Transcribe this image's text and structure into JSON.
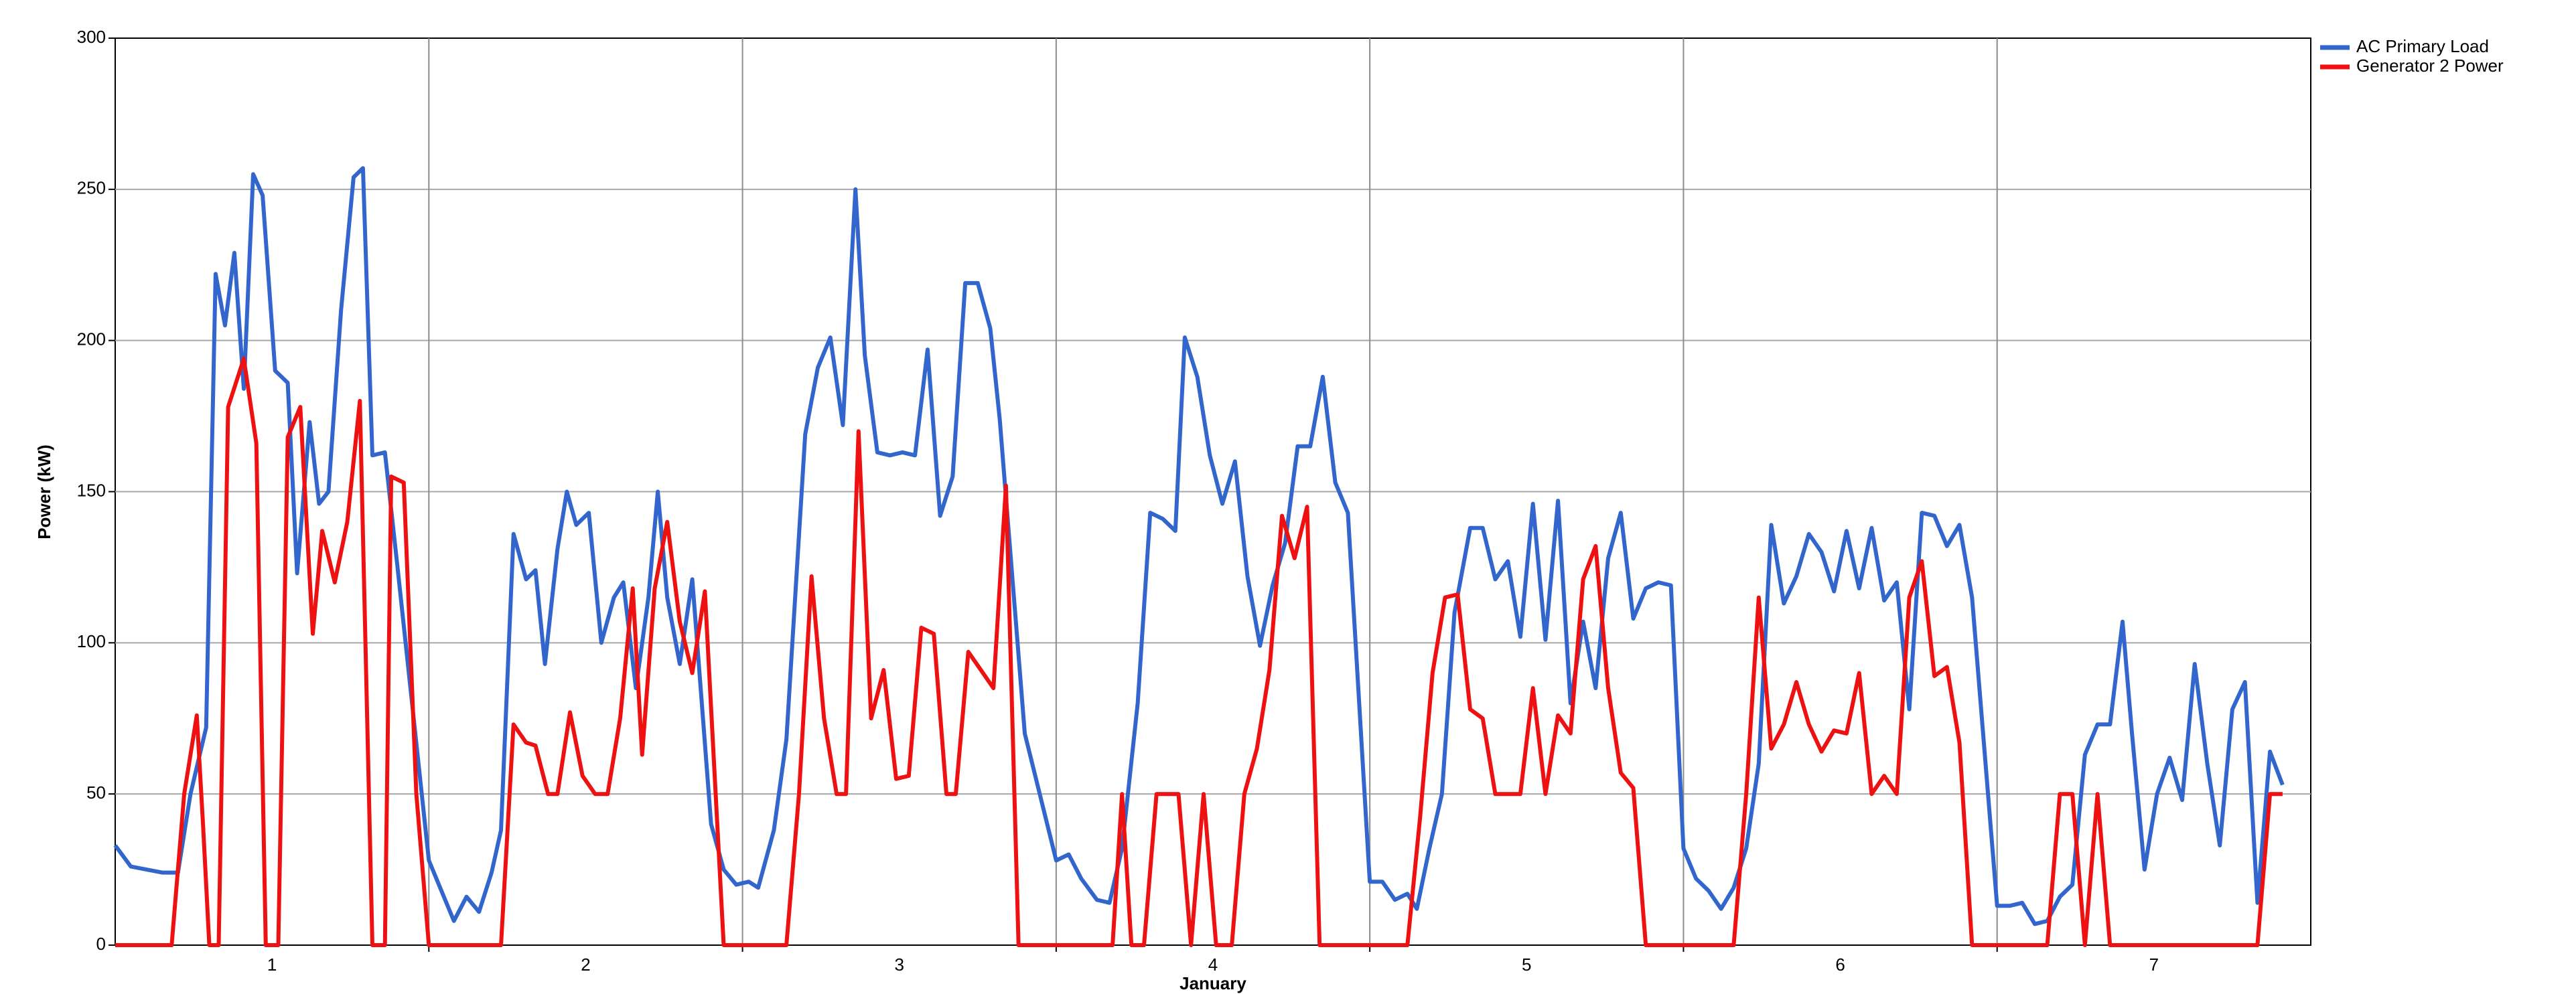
{
  "chart_data": {
    "type": "line",
    "title": "",
    "xlabel": "January",
    "ylabel": "Power (kW)",
    "xlim": [
      0.5,
      7.5
    ],
    "ylim": [
      0,
      300
    ],
    "yticks": [
      0,
      50,
      100,
      150,
      200,
      250,
      300
    ],
    "xticks": [
      {
        "value": 1,
        "label": "1"
      },
      {
        "value": 2,
        "label": "2"
      },
      {
        "value": 3,
        "label": "3"
      },
      {
        "value": 4,
        "label": "4"
      },
      {
        "value": 5,
        "label": "5"
      },
      {
        "value": 6,
        "label": "6"
      },
      {
        "value": 7,
        "label": "7"
      }
    ],
    "vgrid": [
      1.5,
      2.5,
      3.5,
      4.5,
      5.5,
      6.5
    ],
    "grid": true,
    "legend_position": "top-right",
    "series": [
      {
        "name": "AC Primary Load",
        "color": "#3366cc",
        "points": [
          [
            0.5,
            33
          ],
          [
            0.55,
            26
          ],
          [
            0.6,
            25
          ],
          [
            0.65,
            24
          ],
          [
            0.7,
            24
          ],
          [
            0.74,
            50
          ],
          [
            0.79,
            72
          ],
          [
            0.82,
            222
          ],
          [
            0.85,
            205
          ],
          [
            0.88,
            229
          ],
          [
            0.91,
            184
          ],
          [
            0.94,
            255
          ],
          [
            0.97,
            248
          ],
          [
            1.01,
            190
          ],
          [
            1.05,
            186
          ],
          [
            1.08,
            123
          ],
          [
            1.12,
            173
          ],
          [
            1.15,
            146
          ],
          [
            1.18,
            150
          ],
          [
            1.22,
            210
          ],
          [
            1.26,
            254
          ],
          [
            1.29,
            257
          ],
          [
            1.32,
            162
          ],
          [
            1.36,
            163
          ],
          [
            1.4,
            125
          ],
          [
            1.5,
            28
          ],
          [
            1.54,
            18
          ],
          [
            1.58,
            8
          ],
          [
            1.62,
            16
          ],
          [
            1.66,
            11
          ],
          [
            1.7,
            24
          ],
          [
            1.73,
            38
          ],
          [
            1.77,
            136
          ],
          [
            1.81,
            121
          ],
          [
            1.84,
            124
          ],
          [
            1.87,
            93
          ],
          [
            1.91,
            131
          ],
          [
            1.94,
            150
          ],
          [
            1.97,
            139
          ],
          [
            2.01,
            143
          ],
          [
            2.05,
            100
          ],
          [
            2.09,
            115
          ],
          [
            2.12,
            120
          ],
          [
            2.16,
            85
          ],
          [
            2.2,
            115
          ],
          [
            2.23,
            150
          ],
          [
            2.26,
            115
          ],
          [
            2.3,
            93
          ],
          [
            2.34,
            121
          ],
          [
            2.4,
            40
          ],
          [
            2.44,
            25
          ],
          [
            2.48,
            20
          ],
          [
            2.52,
            21
          ],
          [
            2.55,
            19
          ],
          [
            2.6,
            38
          ],
          [
            2.64,
            68
          ],
          [
            2.7,
            169
          ],
          [
            2.74,
            191
          ],
          [
            2.78,
            201
          ],
          [
            2.82,
            172
          ],
          [
            2.86,
            250
          ],
          [
            2.89,
            195
          ],
          [
            2.93,
            163
          ],
          [
            2.97,
            162
          ],
          [
            3.01,
            163
          ],
          [
            3.05,
            162
          ],
          [
            3.09,
            197
          ],
          [
            3.13,
            142
          ],
          [
            3.17,
            155
          ],
          [
            3.21,
            219
          ],
          [
            3.25,
            219
          ],
          [
            3.29,
            204
          ],
          [
            3.32,
            174
          ],
          [
            3.4,
            70
          ],
          [
            3.5,
            28
          ],
          [
            3.54,
            30
          ],
          [
            3.58,
            22
          ],
          [
            3.63,
            15
          ],
          [
            3.67,
            14
          ],
          [
            3.71,
            32
          ],
          [
            3.76,
            80
          ],
          [
            3.8,
            143
          ],
          [
            3.84,
            141
          ],
          [
            3.88,
            137
          ],
          [
            3.91,
            201
          ],
          [
            3.95,
            188
          ],
          [
            3.99,
            162
          ],
          [
            4.03,
            146
          ],
          [
            4.07,
            160
          ],
          [
            4.11,
            122
          ],
          [
            4.15,
            99
          ],
          [
            4.19,
            119
          ],
          [
            4.23,
            133
          ],
          [
            4.27,
            165
          ],
          [
            4.31,
            165
          ],
          [
            4.35,
            188
          ],
          [
            4.39,
            153
          ],
          [
            4.43,
            143
          ],
          [
            4.5,
            21
          ],
          [
            4.54,
            21
          ],
          [
            4.58,
            15
          ],
          [
            4.62,
            17
          ],
          [
            4.65,
            12
          ],
          [
            4.69,
            32
          ],
          [
            4.73,
            50
          ],
          [
            4.77,
            110
          ],
          [
            4.82,
            138
          ],
          [
            4.86,
            138
          ],
          [
            4.9,
            121
          ],
          [
            4.94,
            127
          ],
          [
            4.98,
            102
          ],
          [
            5.02,
            146
          ],
          [
            5.06,
            101
          ],
          [
            5.1,
            147
          ],
          [
            5.14,
            80
          ],
          [
            5.18,
            107
          ],
          [
            5.22,
            85
          ],
          [
            5.26,
            128
          ],
          [
            5.3,
            143
          ],
          [
            5.34,
            108
          ],
          [
            5.38,
            118
          ],
          [
            5.42,
            120
          ],
          [
            5.46,
            119
          ],
          [
            5.5,
            32
          ],
          [
            5.54,
            22
          ],
          [
            5.58,
            18
          ],
          [
            5.62,
            12
          ],
          [
            5.66,
            19
          ],
          [
            5.7,
            32
          ],
          [
            5.74,
            60
          ],
          [
            5.78,
            139
          ],
          [
            5.82,
            113
          ],
          [
            5.86,
            122
          ],
          [
            5.9,
            136
          ],
          [
            5.94,
            130
          ],
          [
            5.98,
            117
          ],
          [
            6.02,
            137
          ],
          [
            6.06,
            118
          ],
          [
            6.1,
            138
          ],
          [
            6.14,
            114
          ],
          [
            6.18,
            120
          ],
          [
            6.22,
            78
          ],
          [
            6.26,
            143
          ],
          [
            6.3,
            142
          ],
          [
            6.34,
            132
          ],
          [
            6.38,
            139
          ],
          [
            6.42,
            115
          ],
          [
            6.5,
            13
          ],
          [
            6.54,
            13
          ],
          [
            6.58,
            14
          ],
          [
            6.62,
            7
          ],
          [
            6.66,
            8
          ],
          [
            6.7,
            16
          ],
          [
            6.74,
            20
          ],
          [
            6.78,
            63
          ],
          [
            6.82,
            73
          ],
          [
            6.86,
            73
          ],
          [
            6.9,
            107
          ],
          [
            6.93,
            70
          ],
          [
            6.97,
            25
          ],
          [
            7.01,
            50
          ],
          [
            7.05,
            62
          ],
          [
            7.09,
            48
          ],
          [
            7.13,
            93
          ],
          [
            7.17,
            60
          ],
          [
            7.21,
            33
          ],
          [
            7.25,
            78
          ],
          [
            7.29,
            87
          ],
          [
            7.33,
            14
          ],
          [
            7.37,
            64
          ],
          [
            7.41,
            53
          ]
        ]
      },
      {
        "name": "Generator 2 Power",
        "color": "#ee1111",
        "points": [
          [
            0.5,
            0
          ],
          [
            0.56,
            0
          ],
          [
            0.62,
            0
          ],
          [
            0.68,
            0
          ],
          [
            0.72,
            50
          ],
          [
            0.76,
            76
          ],
          [
            0.78,
            40
          ],
          [
            0.8,
            0
          ],
          [
            0.83,
            0
          ],
          [
            0.86,
            178
          ],
          [
            0.91,
            194
          ],
          [
            0.95,
            166
          ],
          [
            0.98,
            0
          ],
          [
            1.02,
            0
          ],
          [
            1.05,
            168
          ],
          [
            1.09,
            178
          ],
          [
            1.13,
            103
          ],
          [
            1.16,
            137
          ],
          [
            1.2,
            120
          ],
          [
            1.24,
            140
          ],
          [
            1.28,
            180
          ],
          [
            1.32,
            0
          ],
          [
            1.36,
            0
          ],
          [
            1.38,
            155
          ],
          [
            1.42,
            153
          ],
          [
            1.46,
            50
          ],
          [
            1.5,
            0
          ],
          [
            1.6,
            0
          ],
          [
            1.7,
            0
          ],
          [
            1.73,
            0
          ],
          [
            1.77,
            73
          ],
          [
            1.81,
            67
          ],
          [
            1.84,
            66
          ],
          [
            1.88,
            50
          ],
          [
            1.91,
            50
          ],
          [
            1.95,
            77
          ],
          [
            1.99,
            56
          ],
          [
            2.03,
            50
          ],
          [
            2.07,
            50
          ],
          [
            2.11,
            75
          ],
          [
            2.15,
            118
          ],
          [
            2.18,
            63
          ],
          [
            2.22,
            118
          ],
          [
            2.26,
            140
          ],
          [
            2.3,
            107
          ],
          [
            2.34,
            90
          ],
          [
            2.38,
            117
          ],
          [
            2.44,
            0
          ],
          [
            2.5,
            0
          ],
          [
            2.6,
            0
          ],
          [
            2.64,
            0
          ],
          [
            2.68,
            50
          ],
          [
            2.72,
            122
          ],
          [
            2.76,
            75
          ],
          [
            2.8,
            50
          ],
          [
            2.83,
            50
          ],
          [
            2.87,
            170
          ],
          [
            2.91,
            75
          ],
          [
            2.95,
            91
          ],
          [
            2.99,
            55
          ],
          [
            3.03,
            56
          ],
          [
            3.07,
            105
          ],
          [
            3.11,
            103
          ],
          [
            3.15,
            50
          ],
          [
            3.18,
            50
          ],
          [
            3.22,
            97
          ],
          [
            3.26,
            91
          ],
          [
            3.3,
            85
          ],
          [
            3.34,
            152
          ],
          [
            3.38,
            0
          ],
          [
            3.45,
            0
          ],
          [
            3.5,
            0
          ],
          [
            3.6,
            0
          ],
          [
            3.68,
            0
          ],
          [
            3.71,
            50
          ],
          [
            3.74,
            0
          ],
          [
            3.78,
            0
          ],
          [
            3.82,
            50
          ],
          [
            3.86,
            50
          ],
          [
            3.89,
            50
          ],
          [
            3.93,
            0
          ],
          [
            3.97,
            50
          ],
          [
            4.01,
            0
          ],
          [
            4.06,
            0
          ],
          [
            4.1,
            50
          ],
          [
            4.14,
            65
          ],
          [
            4.18,
            91
          ],
          [
            4.22,
            142
          ],
          [
            4.26,
            128
          ],
          [
            4.3,
            145
          ],
          [
            4.34,
            0
          ],
          [
            4.4,
            0
          ],
          [
            4.5,
            0
          ],
          [
            4.58,
            0
          ],
          [
            4.62,
            0
          ],
          [
            4.66,
            42
          ],
          [
            4.7,
            90
          ],
          [
            4.74,
            115
          ],
          [
            4.78,
            116
          ],
          [
            4.82,
            78
          ],
          [
            4.86,
            75
          ],
          [
            4.9,
            50
          ],
          [
            4.94,
            50
          ],
          [
            4.98,
            50
          ],
          [
            5.02,
            85
          ],
          [
            5.06,
            50
          ],
          [
            5.1,
            76
          ],
          [
            5.14,
            70
          ],
          [
            5.18,
            121
          ],
          [
            5.22,
            132
          ],
          [
            5.26,
            85
          ],
          [
            5.3,
            57
          ],
          [
            5.34,
            52
          ],
          [
            5.38,
            0
          ],
          [
            5.42,
            0
          ],
          [
            5.5,
            0
          ],
          [
            5.6,
            0
          ],
          [
            5.66,
            0
          ],
          [
            5.7,
            50
          ],
          [
            5.74,
            115
          ],
          [
            5.78,
            65
          ],
          [
            5.82,
            73
          ],
          [
            5.86,
            87
          ],
          [
            5.9,
            73
          ],
          [
            5.94,
            64
          ],
          [
            5.98,
            71
          ],
          [
            6.02,
            70
          ],
          [
            6.06,
            90
          ],
          [
            6.1,
            50
          ],
          [
            6.14,
            56
          ],
          [
            6.18,
            50
          ],
          [
            6.22,
            115
          ],
          [
            6.26,
            127
          ],
          [
            6.3,
            89
          ],
          [
            6.34,
            92
          ],
          [
            6.38,
            67
          ],
          [
            6.42,
            0
          ],
          [
            6.5,
            0
          ],
          [
            6.6,
            0
          ],
          [
            6.66,
            0
          ],
          [
            6.7,
            50
          ],
          [
            6.74,
            50
          ],
          [
            6.78,
            0
          ],
          [
            6.82,
            50
          ],
          [
            6.86,
            0
          ],
          [
            6.9,
            0
          ],
          [
            7.0,
            0
          ],
          [
            7.1,
            0
          ],
          [
            7.2,
            0
          ],
          [
            7.3,
            0
          ],
          [
            7.33,
            0
          ],
          [
            7.37,
            50
          ],
          [
            7.41,
            50
          ]
        ]
      }
    ]
  }
}
